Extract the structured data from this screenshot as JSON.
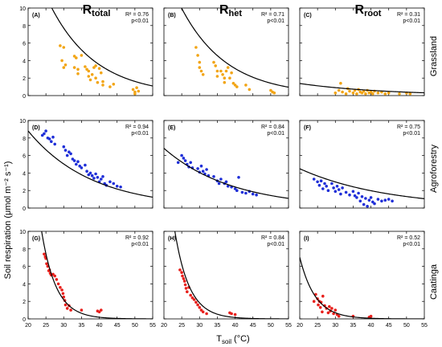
{
  "figure": {
    "ylabel": "Soil respiration (μmol m⁻² s⁻¹)",
    "xlabel_main": "T",
    "xlabel_sub": "soil",
    "xlabel_unit": " (°C)",
    "columns": [
      {
        "main": "R",
        "sub": "total"
      },
      {
        "main": "R",
        "sub": "het"
      },
      {
        "main": "R",
        "sub": "root"
      }
    ],
    "rows": [
      "Grassland",
      "Agroforestry",
      "Caatinga"
    ],
    "x_ticks": [
      "20",
      "25",
      "30",
      "35",
      "40",
      "45",
      "50",
      "55"
    ],
    "y_ticks": [
      "0",
      "2",
      "4",
      "6",
      "8",
      "10"
    ],
    "colors": {
      "Grassland": "#f2a516",
      "Agroforestry": "#1f2fd8",
      "Caatinga": "#e8201c",
      "fit": "#000000"
    }
  },
  "chart_data": [
    {
      "type": "scatter",
      "row": "Grassland",
      "col": "R_total",
      "panel_label": "(A)",
      "r2": "R² = 0.76",
      "p": "p<0.01",
      "xlim": [
        20,
        55
      ],
      "ylim": [
        0,
        10
      ],
      "fit": {
        "a": 80,
        "b": 0.078
      },
      "points": [
        [
          29,
          5.7
        ],
        [
          30,
          5.5
        ],
        [
          29.5,
          4.0
        ],
        [
          30.5,
          3.5
        ],
        [
          30,
          3.2
        ],
        [
          33,
          4.5
        ],
        [
          33.5,
          4.3
        ],
        [
          33,
          3.2
        ],
        [
          34,
          3.0
        ],
        [
          34,
          2.5
        ],
        [
          35,
          4.6
        ],
        [
          36,
          3.3
        ],
        [
          36.5,
          3.0
        ],
        [
          37,
          2.8
        ],
        [
          37,
          2.2
        ],
        [
          37.5,
          1.8
        ],
        [
          38,
          2.4
        ],
        [
          38.5,
          3.2
        ],
        [
          39,
          3.4
        ],
        [
          39,
          2.0
        ],
        [
          39.5,
          1.5
        ],
        [
          40,
          3.1
        ],
        [
          40.5,
          2.6
        ],
        [
          41,
          1.6
        ],
        [
          41,
          1.2
        ],
        [
          43,
          1.0
        ],
        [
          44,
          1.3
        ],
        [
          49.5,
          0.7
        ],
        [
          50,
          0.4
        ],
        [
          50.5,
          0.9
        ],
        [
          51,
          0.5
        ],
        [
          50,
          0.2
        ]
      ]
    },
    {
      "type": "scatter",
      "row": "Grassland",
      "col": "R_het",
      "panel_label": "(B)",
      "r2": "R² = 0.71",
      "p": "p<0.01",
      "xlim": [
        20,
        55
      ],
      "ylim": [
        0,
        10
      ],
      "fit": {
        "a": 70,
        "b": 0.078
      },
      "points": [
        [
          29,
          5.5
        ],
        [
          29.5,
          4.6
        ],
        [
          30,
          3.8
        ],
        [
          30,
          3.2
        ],
        [
          30.5,
          2.8
        ],
        [
          31,
          2.4
        ],
        [
          34,
          3.8
        ],
        [
          34.5,
          3.4
        ],
        [
          35,
          2.8
        ],
        [
          35,
          2.2
        ],
        [
          36,
          2.8
        ],
        [
          36.5,
          2.4
        ],
        [
          37,
          2.0
        ],
        [
          37,
          1.5
        ],
        [
          37.5,
          2.8
        ],
        [
          38,
          3.2
        ],
        [
          38.5,
          2.0
        ],
        [
          39,
          2.6
        ],
        [
          39.5,
          1.4
        ],
        [
          40,
          1.2
        ],
        [
          40.5,
          1.0
        ],
        [
          43,
          1.2
        ],
        [
          44,
          0.7
        ],
        [
          50,
          0.6
        ],
        [
          50.5,
          0.4
        ],
        [
          51,
          0.3
        ]
      ]
    },
    {
      "type": "scatter",
      "row": "Grassland",
      "col": "R_root",
      "panel_label": "(C)",
      "r2": "R² = 0.31",
      "p": "p<0.01",
      "xlim": [
        20,
        55
      ],
      "ylim": [
        0,
        10
      ],
      "fit": {
        "a": 3.2,
        "b": 0.042
      },
      "points": [
        [
          30,
          0.3
        ],
        [
          31,
          0.6
        ],
        [
          31.5,
          1.4
        ],
        [
          32,
          0.4
        ],
        [
          33,
          0.2
        ],
        [
          33.5,
          0.8
        ],
        [
          34,
          0.5
        ],
        [
          35,
          0.3
        ],
        [
          35.5,
          0.6
        ],
        [
          36,
          0.2
        ],
        [
          36.5,
          0.7
        ],
        [
          37,
          0.4
        ],
        [
          37.5,
          0.3
        ],
        [
          38,
          0.5
        ],
        [
          38.5,
          0.2
        ],
        [
          39,
          0.6
        ],
        [
          39.5,
          0.3
        ],
        [
          40,
          0.4
        ],
        [
          40.5,
          0.2
        ],
        [
          41,
          0.5
        ],
        [
          42,
          0.3
        ],
        [
          43,
          0.4
        ],
        [
          44,
          0.2
        ],
        [
          45,
          0.3
        ],
        [
          48,
          0.2
        ],
        [
          50,
          0.3
        ],
        [
          51,
          0.2
        ]
      ]
    },
    {
      "type": "scatter",
      "row": "Agroforestry",
      "col": "R_total",
      "panel_label": "(D)",
      "r2": "R² = 0.94",
      "p": "p<0.01",
      "xlim": [
        20,
        55
      ],
      "ylim": [
        0,
        10
      ],
      "fit": {
        "a": 27,
        "b": 0.056
      },
      "points": [
        [
          24,
          8.3
        ],
        [
          24.5,
          8.5
        ],
        [
          25,
          8.8
        ],
        [
          25.5,
          8.0
        ],
        [
          26,
          7.9
        ],
        [
          26.5,
          7.6
        ],
        [
          27,
          8.1
        ],
        [
          27.5,
          7.3
        ],
        [
          30,
          7.0
        ],
        [
          30.5,
          6.6
        ],
        [
          31,
          6.0
        ],
        [
          31.5,
          6.4
        ],
        [
          32,
          6.2
        ],
        [
          32.5,
          5.6
        ],
        [
          33,
          5.4
        ],
        [
          33.5,
          5.0
        ],
        [
          34,
          5.3
        ],
        [
          34.5,
          4.8
        ],
        [
          35,
          4.6
        ],
        [
          36,
          4.9
        ],
        [
          36.5,
          4.2
        ],
        [
          37,
          3.8
        ],
        [
          37.5,
          4.0
        ],
        [
          38,
          3.7
        ],
        [
          38.5,
          3.4
        ],
        [
          39,
          3.9
        ],
        [
          39.5,
          3.5
        ],
        [
          40,
          3.0
        ],
        [
          40.5,
          3.3
        ],
        [
          41,
          3.6
        ],
        [
          41.5,
          2.8
        ],
        [
          42,
          2.6
        ],
        [
          43,
          3.0
        ],
        [
          44,
          2.8
        ],
        [
          45,
          2.5
        ],
        [
          46,
          2.4
        ]
      ]
    },
    {
      "type": "scatter",
      "row": "Agroforestry",
      "col": "R_het",
      "panel_label": "(E)",
      "r2": "R² = 0.84",
      "p": "p<0.01",
      "xlim": [
        20,
        55
      ],
      "ylim": [
        0,
        10
      ],
      "fit": {
        "a": 19.3,
        "b": 0.052
      },
      "points": [
        [
          24,
          5.2
        ],
        [
          25,
          6.0
        ],
        [
          25.5,
          5.7
        ],
        [
          26,
          5.4
        ],
        [
          26.5,
          5.0
        ],
        [
          27,
          4.7
        ],
        [
          27.5,
          5.2
        ],
        [
          28,
          4.6
        ],
        [
          29.5,
          4.5
        ],
        [
          30,
          4.1
        ],
        [
          30.5,
          4.8
        ],
        [
          31,
          4.2
        ],
        [
          31.5,
          3.9
        ],
        [
          32,
          4.4
        ],
        [
          32.5,
          3.7
        ],
        [
          34,
          3.6
        ],
        [
          35,
          3.1
        ],
        [
          35.5,
          2.8
        ],
        [
          36,
          3.3
        ],
        [
          37,
          2.8
        ],
        [
          37.5,
          3.0
        ],
        [
          38,
          2.5
        ],
        [
          39,
          2.4
        ],
        [
          40,
          2.2
        ],
        [
          40.5,
          2.0
        ],
        [
          41,
          3.5
        ],
        [
          42,
          1.8
        ],
        [
          43,
          1.7
        ],
        [
          44,
          1.9
        ],
        [
          45,
          1.6
        ],
        [
          46,
          1.5
        ]
      ]
    },
    {
      "type": "scatter",
      "row": "Agroforestry",
      "col": "R_root",
      "panel_label": "(F)",
      "r2": "R² = 0.75",
      "p": "p<0.01",
      "xlim": [
        20,
        55
      ],
      "ylim": [
        0,
        10
      ],
      "fit": {
        "a": 10.2,
        "b": 0.041
      },
      "points": [
        [
          24,
          3.3
        ],
        [
          25,
          3.0
        ],
        [
          25.5,
          2.6
        ],
        [
          26,
          3.1
        ],
        [
          26.5,
          2.2
        ],
        [
          27,
          2.8
        ],
        [
          27.5,
          2.5
        ],
        [
          28,
          2.0
        ],
        [
          29,
          2.8
        ],
        [
          29.5,
          2.3
        ],
        [
          30,
          1.9
        ],
        [
          30.5,
          2.5
        ],
        [
          31,
          2.1
        ],
        [
          31.5,
          1.6
        ],
        [
          32,
          2.3
        ],
        [
          33,
          1.8
        ],
        [
          34,
          1.5
        ],
        [
          35,
          1.9
        ],
        [
          35.5,
          1.4
        ],
        [
          36,
          1.2
        ],
        [
          36.5,
          1.7
        ],
        [
          37,
          0.8
        ],
        [
          37.5,
          1.3
        ],
        [
          38,
          0.4
        ],
        [
          38.5,
          1.1
        ],
        [
          39,
          0.2
        ],
        [
          39.5,
          0.9
        ],
        [
          40,
          1.2
        ],
        [
          40.5,
          0.7
        ],
        [
          41,
          0.5
        ],
        [
          42,
          1.0
        ],
        [
          43,
          0.8
        ],
        [
          44,
          0.9
        ],
        [
          45,
          1.0
        ],
        [
          46,
          0.8
        ]
      ]
    },
    {
      "type": "scatter",
      "row": "Caatinga",
      "col": "R_total",
      "panel_label": "(G)",
      "r2": "R² = 0.92",
      "p": "p<0.01",
      "xlim": [
        20,
        55
      ],
      "ylim": [
        0,
        10
      ],
      "fit": {
        "a": 3400,
        "b": 0.245
      },
      "points": [
        [
          24.5,
          7.4
        ],
        [
          24.8,
          7.1
        ],
        [
          25,
          6.9
        ],
        [
          25.2,
          6.3
        ],
        [
          25.5,
          6.0
        ],
        [
          25.8,
          5.5
        ],
        [
          26,
          5.6
        ],
        [
          26.2,
          5.2
        ],
        [
          26.5,
          5.0
        ],
        [
          27,
          5.1
        ],
        [
          27.5,
          4.9
        ],
        [
          28,
          4.5
        ],
        [
          28.5,
          4.0
        ],
        [
          29,
          3.6
        ],
        [
          29.5,
          3.3
        ],
        [
          29.8,
          2.9
        ],
        [
          30,
          2.5
        ],
        [
          30.3,
          2.1
        ],
        [
          30.5,
          1.6
        ],
        [
          31,
          1.2
        ],
        [
          31.5,
          1.5
        ],
        [
          32,
          1.0
        ],
        [
          35,
          1.0
        ],
        [
          39.5,
          0.9
        ],
        [
          40,
          0.8
        ],
        [
          40.5,
          1.0
        ]
      ]
    },
    {
      "type": "scatter",
      "row": "Caatinga",
      "col": "R_het",
      "panel_label": "(H)",
      "r2": "R² = 0.84",
      "p": "p<0.01",
      "xlim": [
        20,
        55
      ],
      "ylim": [
        0,
        10
      ],
      "fit": {
        "a": 2850,
        "b": 0.245
      },
      "points": [
        [
          24.5,
          5.6
        ],
        [
          25,
          5.3
        ],
        [
          25.2,
          4.9
        ],
        [
          25.5,
          4.6
        ],
        [
          25.8,
          4.3
        ],
        [
          26,
          3.9
        ],
        [
          26.2,
          3.5
        ],
        [
          26.5,
          3.1
        ],
        [
          27,
          3.6
        ],
        [
          27.5,
          2.7
        ],
        [
          28,
          2.4
        ],
        [
          28.5,
          2.2
        ],
        [
          29,
          1.9
        ],
        [
          29.5,
          1.6
        ],
        [
          30,
          1.3
        ],
        [
          30.5,
          1.0
        ],
        [
          31,
          0.8
        ],
        [
          32,
          0.6
        ],
        [
          38.5,
          0.7
        ],
        [
          39,
          0.6
        ],
        [
          40,
          0.5
        ]
      ]
    },
    {
      "type": "scatter",
      "row": "Caatinga",
      "col": "R_root",
      "panel_label": "(I)",
      "r2": "R² = 0.52",
      "p": "p<0.01",
      "xlim": [
        20,
        55
      ],
      "ylim": [
        0,
        10
      ],
      "fit": {
        "a": 700,
        "b": 0.23
      },
      "points": [
        [
          24,
          2.0
        ],
        [
          24.5,
          2.8
        ],
        [
          25,
          2.3
        ],
        [
          25.2,
          1.6
        ],
        [
          25.5,
          2.0
        ],
        [
          25.8,
          1.3
        ],
        [
          26,
          1.9
        ],
        [
          26.3,
          0.8
        ],
        [
          26.5,
          2.6
        ],
        [
          27,
          1.5
        ],
        [
          27.5,
          1.2
        ],
        [
          28,
          0.7
        ],
        [
          28.3,
          1.4
        ],
        [
          28.6,
          0.9
        ],
        [
          29,
          1.2
        ],
        [
          29.5,
          0.6
        ],
        [
          30,
          1.0
        ],
        [
          30.5,
          0.5
        ],
        [
          31,
          0.3
        ],
        [
          35,
          0.3
        ],
        [
          39.5,
          0.2
        ],
        [
          40,
          0.3
        ]
      ]
    }
  ]
}
